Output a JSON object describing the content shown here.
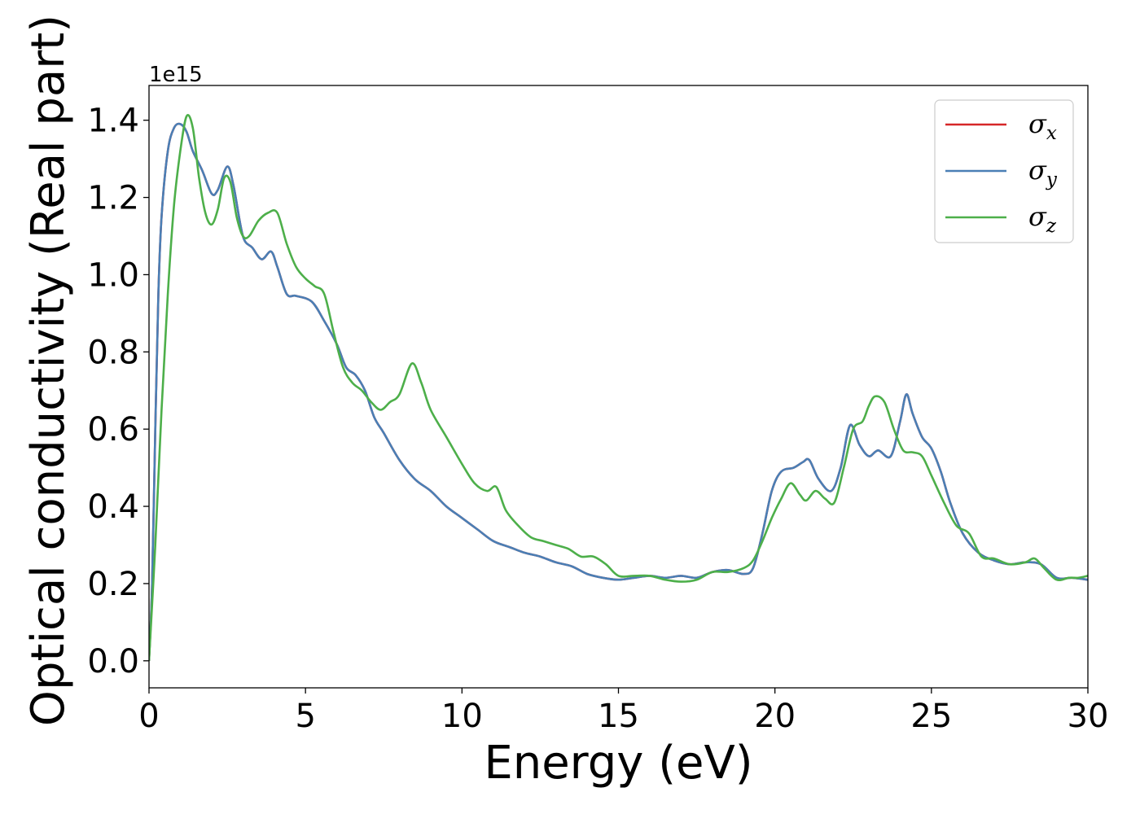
{
  "chart_data": {
    "type": "line",
    "xlabel": "Energy (eV)",
    "ylabel": "Optical conductivity (Real part)",
    "y_offset_text": "1e15",
    "xlim": [
      0,
      30
    ],
    "ylim": [
      -0.07,
      1.49
    ],
    "x_ticks": [
      0,
      5,
      10,
      15,
      20,
      25,
      30
    ],
    "x_tick_labels": [
      "0",
      "5",
      "10",
      "15",
      "20",
      "25",
      "30"
    ],
    "y_ticks": [
      0.0,
      0.2,
      0.4,
      0.6,
      0.8,
      1.0,
      1.2,
      1.4
    ],
    "y_tick_labels": [
      "0.0",
      "0.2",
      "0.4",
      "0.6",
      "0.8",
      "1.0",
      "1.2",
      "1.4"
    ],
    "grid": false,
    "legend_position": "top-right",
    "series": [
      {
        "name": "σx",
        "legend_symbol": "σ",
        "legend_sub": "x",
        "color": "#d62728",
        "x": [
          0,
          0.1,
          0.2,
          0.3,
          0.4,
          0.6,
          0.8,
          1.0,
          1.2,
          1.4,
          1.7,
          2.0,
          2.2,
          2.5,
          2.7,
          3.0,
          3.3,
          3.6,
          3.9,
          4.1,
          4.4,
          4.7,
          5.2,
          5.6,
          6.0,
          6.3,
          6.6,
          6.9,
          7.2,
          7.5,
          8.0,
          8.5,
          9.0,
          9.5,
          10.0,
          10.5,
          11.0,
          11.5,
          12.0,
          12.5,
          13.0,
          13.5,
          14.0,
          14.5,
          15.0,
          15.5,
          16.0,
          16.5,
          17.0,
          17.5,
          18.0,
          18.5,
          19.0,
          19.3,
          19.6,
          19.9,
          20.2,
          20.6,
          20.9,
          21.1,
          21.4,
          21.8,
          22.1,
          22.4,
          22.7,
          23.0,
          23.3,
          23.7,
          24.0,
          24.2,
          24.4,
          24.7,
          25.0,
          25.3,
          25.6,
          26.0,
          26.5,
          27.0,
          27.5,
          28.0,
          28.5,
          29.0,
          29.5,
          30.0
        ],
        "y": [
          0.0,
          0.2,
          0.6,
          0.95,
          1.15,
          1.32,
          1.38,
          1.39,
          1.37,
          1.32,
          1.27,
          1.21,
          1.22,
          1.28,
          1.23,
          1.1,
          1.07,
          1.04,
          1.06,
          1.02,
          0.95,
          0.945,
          0.93,
          0.88,
          0.82,
          0.76,
          0.74,
          0.7,
          0.63,
          0.59,
          0.52,
          0.47,
          0.44,
          0.4,
          0.37,
          0.34,
          0.31,
          0.295,
          0.28,
          0.27,
          0.255,
          0.245,
          0.225,
          0.215,
          0.21,
          0.215,
          0.22,
          0.215,
          0.22,
          0.215,
          0.23,
          0.235,
          0.225,
          0.24,
          0.33,
          0.44,
          0.49,
          0.5,
          0.515,
          0.52,
          0.47,
          0.44,
          0.5,
          0.61,
          0.56,
          0.53,
          0.545,
          0.53,
          0.62,
          0.69,
          0.64,
          0.58,
          0.55,
          0.49,
          0.41,
          0.33,
          0.28,
          0.26,
          0.25,
          0.255,
          0.25,
          0.215,
          0.215,
          0.21
        ]
      },
      {
        "name": "σy",
        "legend_symbol": "σ",
        "legend_sub": "y",
        "color": "#4a7fb5",
        "x": [
          0,
          0.1,
          0.2,
          0.3,
          0.4,
          0.6,
          0.8,
          1.0,
          1.2,
          1.4,
          1.7,
          2.0,
          2.2,
          2.5,
          2.7,
          3.0,
          3.3,
          3.6,
          3.9,
          4.1,
          4.4,
          4.7,
          5.2,
          5.6,
          6.0,
          6.3,
          6.6,
          6.9,
          7.2,
          7.5,
          8.0,
          8.5,
          9.0,
          9.5,
          10.0,
          10.5,
          11.0,
          11.5,
          12.0,
          12.5,
          13.0,
          13.5,
          14.0,
          14.5,
          15.0,
          15.5,
          16.0,
          16.5,
          17.0,
          17.5,
          18.0,
          18.5,
          19.0,
          19.3,
          19.6,
          19.9,
          20.2,
          20.6,
          20.9,
          21.1,
          21.4,
          21.8,
          22.1,
          22.4,
          22.7,
          23.0,
          23.3,
          23.7,
          24.0,
          24.2,
          24.4,
          24.7,
          25.0,
          25.3,
          25.6,
          26.0,
          26.5,
          27.0,
          27.5,
          28.0,
          28.5,
          29.0,
          29.5,
          30.0
        ],
        "y": [
          0.0,
          0.2,
          0.6,
          0.95,
          1.15,
          1.32,
          1.38,
          1.39,
          1.37,
          1.32,
          1.27,
          1.21,
          1.22,
          1.28,
          1.23,
          1.1,
          1.07,
          1.04,
          1.06,
          1.02,
          0.95,
          0.945,
          0.93,
          0.88,
          0.82,
          0.76,
          0.74,
          0.7,
          0.63,
          0.59,
          0.52,
          0.47,
          0.44,
          0.4,
          0.37,
          0.34,
          0.31,
          0.295,
          0.28,
          0.27,
          0.255,
          0.245,
          0.225,
          0.215,
          0.21,
          0.215,
          0.22,
          0.215,
          0.22,
          0.215,
          0.23,
          0.235,
          0.225,
          0.24,
          0.33,
          0.44,
          0.49,
          0.5,
          0.515,
          0.52,
          0.47,
          0.44,
          0.5,
          0.61,
          0.56,
          0.53,
          0.545,
          0.53,
          0.62,
          0.69,
          0.64,
          0.58,
          0.55,
          0.49,
          0.41,
          0.33,
          0.28,
          0.26,
          0.25,
          0.255,
          0.25,
          0.215,
          0.215,
          0.21
        ]
      },
      {
        "name": "σz",
        "legend_symbol": "σ",
        "legend_sub": "z",
        "color": "#4daf4a",
        "x": [
          0,
          0.2,
          0.4,
          0.6,
          0.8,
          1.0,
          1.2,
          1.4,
          1.6,
          1.8,
          2.0,
          2.2,
          2.4,
          2.6,
          2.8,
          3.0,
          3.2,
          3.5,
          3.8,
          4.1,
          4.4,
          4.7,
          5.0,
          5.3,
          5.6,
          5.9,
          6.2,
          6.5,
          6.8,
          7.1,
          7.4,
          7.7,
          8.0,
          8.4,
          8.7,
          9.0,
          9.5,
          10.0,
          10.4,
          10.8,
          11.1,
          11.4,
          11.8,
          12.2,
          12.6,
          13.0,
          13.4,
          13.8,
          14.2,
          14.6,
          15.0,
          15.5,
          16.0,
          16.5,
          17.0,
          17.5,
          18.0,
          18.5,
          19.0,
          19.3,
          19.6,
          19.9,
          20.2,
          20.5,
          20.8,
          21.0,
          21.3,
          21.6,
          21.9,
          22.2,
          22.5,
          22.8,
          23.0,
          23.2,
          23.5,
          23.8,
          24.1,
          24.4,
          24.7,
          25.0,
          25.4,
          25.8,
          26.2,
          26.6,
          27.0,
          27.5,
          28.0,
          28.3,
          28.6,
          29.0,
          29.4,
          29.7,
          30.0
        ],
        "y": [
          0.0,
          0.3,
          0.65,
          0.95,
          1.18,
          1.32,
          1.41,
          1.38,
          1.25,
          1.16,
          1.13,
          1.17,
          1.25,
          1.24,
          1.15,
          1.1,
          1.1,
          1.14,
          1.16,
          1.16,
          1.08,
          1.02,
          0.99,
          0.97,
          0.95,
          0.85,
          0.76,
          0.72,
          0.7,
          0.67,
          0.65,
          0.67,
          0.69,
          0.77,
          0.72,
          0.65,
          0.58,
          0.51,
          0.46,
          0.44,
          0.45,
          0.39,
          0.35,
          0.32,
          0.31,
          0.3,
          0.29,
          0.27,
          0.27,
          0.25,
          0.22,
          0.22,
          0.22,
          0.21,
          0.205,
          0.21,
          0.23,
          0.23,
          0.24,
          0.26,
          0.31,
          0.37,
          0.42,
          0.46,
          0.43,
          0.415,
          0.44,
          0.42,
          0.41,
          0.5,
          0.6,
          0.62,
          0.66,
          0.685,
          0.67,
          0.6,
          0.545,
          0.54,
          0.53,
          0.48,
          0.41,
          0.35,
          0.33,
          0.27,
          0.265,
          0.25,
          0.255,
          0.265,
          0.24,
          0.21,
          0.215,
          0.215,
          0.22
        ]
      }
    ]
  }
}
